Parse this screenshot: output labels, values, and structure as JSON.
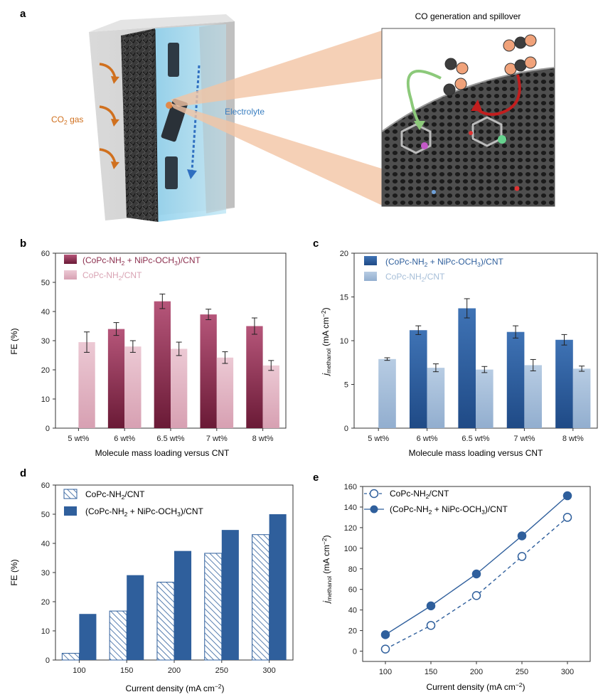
{
  "panel_a": {
    "label": "a",
    "co2_gas_main": "CO",
    "co2_gas_sub": "2",
    "co2_gas_tail": " gas",
    "electrolyte": "Electrolyte",
    "inset_title": "CO generation and spillover",
    "colors": {
      "co2_text": "#d0701e",
      "electrolyte_text": "#3a7fc1",
      "connector": "#f2c4a4"
    }
  },
  "chart_data": [
    {
      "id": "b",
      "panel_label": "b",
      "type": "bar",
      "categories": [
        "5 wt%",
        "6 wt%",
        "6.5 wt%",
        "7 wt%",
        "8 wt%"
      ],
      "series": [
        {
          "name": "(CoPc-NH2 + NiPc-OCH3)/CNT",
          "values": [
            null,
            34,
            43.5,
            39,
            35
          ],
          "errors": [
            null,
            2.2,
            2.5,
            1.8,
            2.8
          ],
          "color": "#8c2f4e"
        },
        {
          "name": "CoPc-NH2/CNT",
          "values": [
            29.5,
            28,
            27.2,
            24.2,
            21.5
          ],
          "errors": [
            3.5,
            2.0,
            2.3,
            2.0,
            1.7
          ],
          "color": "#e0b4c2"
        }
      ],
      "legend_labels": [
        {
          "prefix": "(CoPc-NH",
          "sub1": "2",
          "mid": " + NiPc-OCH",
          "sub2": "3",
          "suffix": ")/CNT"
        },
        {
          "prefix": "CoPc-NH",
          "sub1": "2",
          "mid": "/CNT",
          "sub2": "",
          "suffix": ""
        }
      ],
      "legend_text_colors": [
        "#8c2f4e",
        "#d9a3b3"
      ],
      "ylabel": "FE (%)",
      "xlabel": "Molecule mass loading versus CNT",
      "ylim": [
        0,
        60
      ],
      "yticks": [
        0,
        10,
        20,
        30,
        40,
        50,
        60
      ],
      "grid": false,
      "legend_position": "top-left"
    },
    {
      "id": "c",
      "panel_label": "c",
      "type": "bar",
      "categories": [
        "5 wt%",
        "6 wt%",
        "6.5 wt%",
        "7 wt%",
        "8 wt%"
      ],
      "series": [
        {
          "name": "(CoPc-NH2 + NiPc-OCH3)/CNT",
          "values": [
            null,
            11.2,
            13.7,
            11.0,
            10.1
          ],
          "errors": [
            null,
            0.5,
            1.1,
            0.7,
            0.6
          ],
          "color": "#2f5f9c"
        },
        {
          "name": "CoPc-NH2/CNT",
          "values": [
            7.9,
            6.9,
            6.7,
            7.2,
            6.8
          ],
          "errors": [
            0.15,
            0.45,
            0.35,
            0.65,
            0.3
          ],
          "color": "#a6bed8"
        }
      ],
      "legend_labels": [
        {
          "prefix": "(CoPc-NH",
          "sub1": "2",
          "mid": " + NiPc-OCH",
          "sub2": "3",
          "suffix": ")/CNT"
        },
        {
          "prefix": "CoPc-NH",
          "sub1": "2",
          "mid": "/CNT",
          "sub2": "",
          "suffix": ""
        }
      ],
      "legend_text_colors": [
        "#2f5f9c",
        "#a6bed8"
      ],
      "ylabel_main": "j",
      "ylabel_sub": "methanol",
      "ylabel_tail": " (mA cm",
      "ylabel_sup": "−2",
      "ylabel_end": ")",
      "xlabel": "Molecule mass loading versus CNT",
      "ylim": [
        0,
        20
      ],
      "yticks": [
        0,
        5,
        10,
        15,
        20
      ],
      "grid": false,
      "legend_position": "top-left"
    },
    {
      "id": "d",
      "panel_label": "d",
      "type": "bar",
      "categories": [
        "100",
        "150",
        "200",
        "250",
        "300"
      ],
      "series": [
        {
          "name": "CoPc-NH2/CNT",
          "values": [
            2.3,
            16.8,
            26.7,
            36.6,
            43
          ],
          "style": "hatched",
          "color": "#2f5f9c"
        },
        {
          "name": "(CoPc-NH2 + NiPc-OCH3)/CNT",
          "values": [
            15.8,
            29.1,
            37.4,
            44.6,
            50
          ],
          "style": "solid",
          "color": "#2f5f9c"
        }
      ],
      "legend_labels": [
        {
          "prefix": "CoPc-NH",
          "sub1": "2",
          "mid": "/CNT",
          "sub2": "",
          "suffix": ""
        },
        {
          "prefix": "(CoPc-NH",
          "sub1": "2",
          "mid": " + NiPc-OCH",
          "sub2": "3",
          "suffix": ")/CNT"
        }
      ],
      "ylabel": "FE (%)",
      "xlabel_main": "Current density (mA cm",
      "xlabel_sup": "−2",
      "xlabel_end": ")",
      "ylim": [
        0,
        60
      ],
      "yticks": [
        0,
        10,
        20,
        30,
        40,
        50,
        60
      ],
      "grid": false,
      "legend_position": "top-left"
    },
    {
      "id": "e",
      "panel_label": "e",
      "type": "line",
      "x": [
        100,
        150,
        200,
        250,
        300
      ],
      "series": [
        {
          "name": "CoPc-NH2/CNT",
          "values": [
            2,
            25,
            54,
            92,
            130
          ],
          "style": "dashed-open",
          "color": "#2f5f9c"
        },
        {
          "name": "(CoPc-NH2 + NiPc-OCH3)/CNT",
          "values": [
            16,
            44,
            75,
            112,
            151
          ],
          "style": "solid-filled",
          "color": "#2f5f9c"
        }
      ],
      "legend_labels": [
        {
          "prefix": "CoPc-NH",
          "sub1": "2",
          "mid": "/CNT",
          "sub2": "",
          "suffix": ""
        },
        {
          "prefix": "(CoPc-NH",
          "sub1": "2",
          "mid": " + NiPc-OCH",
          "sub2": "3",
          "suffix": ")/CNT"
        }
      ],
      "ylabel_main": "j",
      "ylabel_sub": "methanol",
      "ylabel_tail": " (mA cm",
      "ylabel_sup": "−2",
      "ylabel_end": ")",
      "xlabel_main": "Current density (mA cm",
      "xlabel_sup": "−2",
      "xlabel_end": ")",
      "xlim": [
        75,
        325
      ],
      "xticks": [
        100,
        150,
        200,
        250,
        300
      ],
      "ylim": [
        -10,
        160
      ],
      "yticks": [
        0,
        20,
        40,
        60,
        80,
        100,
        120,
        140,
        160
      ],
      "grid": false,
      "legend_position": "top-left"
    }
  ]
}
